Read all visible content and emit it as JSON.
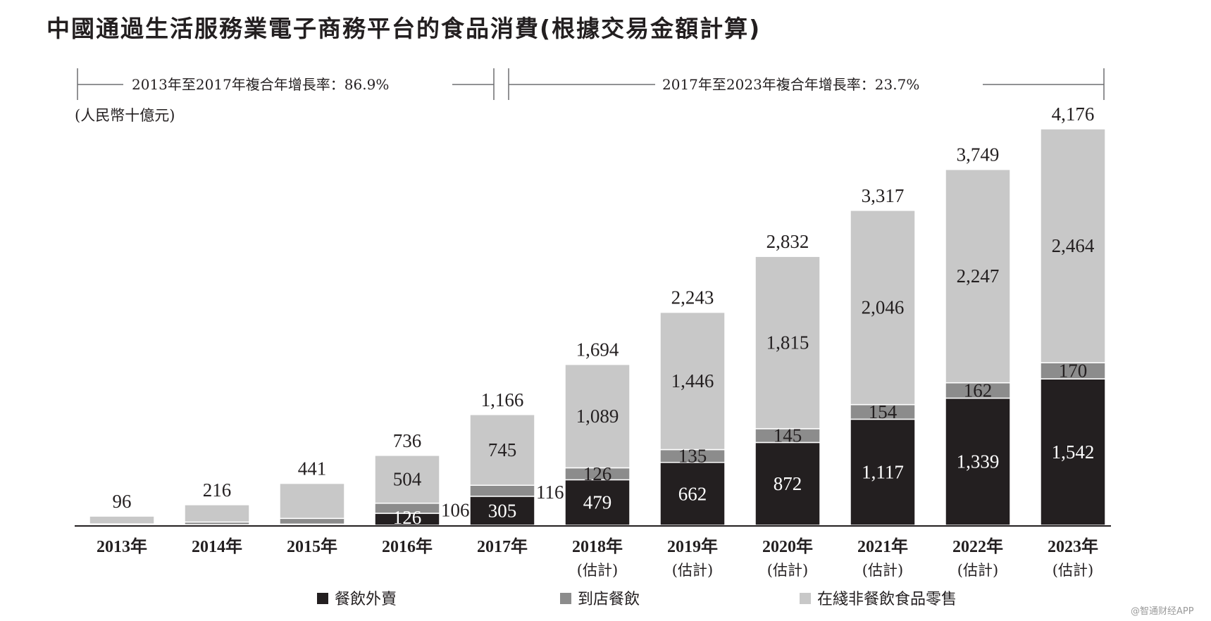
{
  "title": "中國通過生活服務業電子商務平台的食品消費(根據交易金額計算)",
  "unit": "(人民幣十億元)",
  "cagr": [
    {
      "label": "2013年至2017年複合年增長率：86.9%"
    },
    {
      "label": "2017年至2023年複合年增長率：23.7%"
    }
  ],
  "colors": {
    "delivery": "#231f20",
    "dine_in": "#8c8c8c",
    "retail": "#c8c8c8"
  },
  "legend": [
    {
      "label": "餐飲外賣",
      "color": "#231f20"
    },
    {
      "label": "到店餐飲",
      "color": "#8c8c8c"
    },
    {
      "label": "在綫非餐飲食品零售",
      "color": "#c8c8c8"
    }
  ],
  "watermark": "@智通财经APP",
  "chart_data": {
    "type": "bar",
    "stacked": true,
    "title": "中國通過生活服務業電子商務平台的食品消費(根據交易金額計算)",
    "ylabel": "(人民幣十億元)",
    "categories": [
      "2013年",
      "2014年",
      "2015年",
      "2016年",
      "2017年",
      "2018年",
      "2019年",
      "2020年",
      "2021年",
      "2022年",
      "2023年"
    ],
    "sublabels": [
      "",
      "",
      "",
      "",
      "",
      "(估計)",
      "(估計)",
      "(估計)",
      "(估計)",
      "(估計)",
      "(估計)"
    ],
    "series": [
      {
        "name": "餐飲外賣",
        "values": [
          4,
          6,
          12,
          126,
          305,
          479,
          662,
          872,
          1117,
          1339,
          1542
        ],
        "labels": [
          "",
          "",
          "",
          "126",
          "305",
          "479",
          "662",
          "872",
          "1,117",
          "1,339",
          "1,542"
        ]
      },
      {
        "name": "到店餐飲",
        "values": [
          10,
          28,
          60,
          106,
          116,
          126,
          135,
          145,
          154,
          162,
          170
        ],
        "labels": [
          "",
          "",
          "",
          "106",
          "116",
          "126",
          "135",
          "145",
          "154",
          "162",
          "170"
        ]
      },
      {
        "name": "在綫非餐飲食品零售",
        "values": [
          82,
          182,
          369,
          504,
          745,
          1089,
          1446,
          1815,
          2046,
          2247,
          2464
        ],
        "labels": [
          "",
          "",
          "",
          "504",
          "745",
          "1,089",
          "1,446",
          "1,815",
          "2,046",
          "2,247",
          "2,464"
        ]
      }
    ],
    "totals": [
      96,
      216,
      441,
      736,
      1166,
      1694,
      2243,
      2832,
      3317,
      3749,
      4176
    ],
    "total_labels": [
      "96",
      "216",
      "441",
      "736",
      "1,166",
      "1,694",
      "2,243",
      "2,832",
      "3,317",
      "3,749",
      "4,176"
    ],
    "ylim": [
      0,
      4176
    ]
  }
}
